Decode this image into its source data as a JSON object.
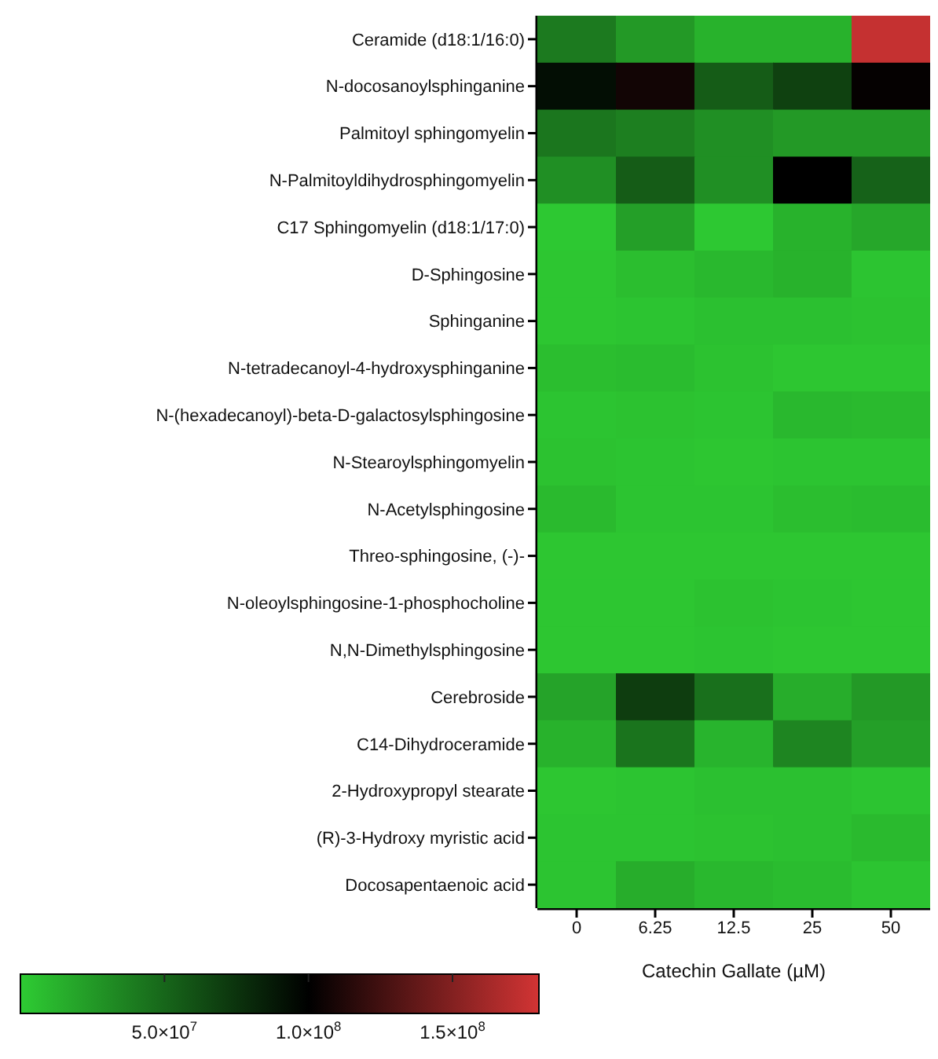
{
  "chart_data": {
    "type": "heatmap",
    "xlabel": "Catechin Gallate (µM)",
    "categories": [
      "0",
      "6.25",
      "12.5",
      "25",
      "50"
    ],
    "y_categories": [
      "Ceramide (d18:1/16:0)",
      "N-docosanoylsphinganine",
      "Palmitoyl sphingomyelin",
      "N-Palmitoyldihydrosphingomyelin",
      "C17 Sphingomyelin (d18:1/17:0)",
      "D-Sphingosine",
      "Sphinganine",
      "N-tetradecanoyl-4-hydroxysphinganine",
      "N-(hexadecanoyl)-beta-D-galactosylsphingosine",
      "N-Stearoylsphingomyelin",
      "N-Acetylsphingosine",
      "Threo-sphingosine, (-)-",
      "N-oleoylsphingosine-1-phosphocholine",
      "N,N-Dimethylsphingosine",
      "Cerebroside",
      "C14-Dihydroceramide",
      "2-Hydroxypropyl stearate",
      "(R)-3-Hydroxy myristic acid",
      "Docosapentaenoic acid"
    ],
    "cells": [
      [
        40000000,
        25000000,
        13000000,
        13000000,
        175000000
      ],
      [
        93000000,
        107000000,
        55000000,
        68000000,
        102000000
      ],
      [
        42000000,
        38000000,
        30000000,
        25000000,
        25000000
      ],
      [
        30000000,
        55000000,
        30000000,
        100000000,
        52000000
      ],
      [
        2000000,
        22000000,
        2000000,
        13000000,
        18000000
      ],
      [
        3000000,
        7000000,
        10000000,
        13000000,
        4000000
      ],
      [
        3000000,
        4000000,
        6000000,
        6000000,
        5000000
      ],
      [
        7000000,
        8000000,
        5000000,
        3000000,
        3000000
      ],
      [
        4000000,
        5000000,
        4000000,
        10000000,
        9000000
      ],
      [
        5000000,
        4000000,
        3000000,
        4000000,
        4000000
      ],
      [
        9000000,
        4000000,
        4000000,
        7000000,
        8000000
      ],
      [
        3000000,
        3000000,
        3000000,
        3000000,
        3000000
      ],
      [
        3000000,
        3000000,
        5000000,
        4000000,
        3000000
      ],
      [
        3000000,
        3000000,
        4000000,
        3000000,
        3000000
      ],
      [
        20000000,
        70000000,
        45000000,
        15000000,
        25000000
      ],
      [
        13000000,
        43000000,
        12000000,
        35000000,
        22000000
      ],
      [
        3000000,
        4000000,
        6000000,
        6000000,
        4000000
      ],
      [
        4000000,
        4000000,
        5000000,
        6000000,
        9000000
      ],
      [
        4000000,
        15000000,
        10000000,
        8000000,
        4000000
      ]
    ],
    "clim": [
      0,
      180000000
    ],
    "cticks": [
      {
        "value": 50000000,
        "label": "5.0×10$^{7}$"
      },
      {
        "value": 100000000,
        "label": "1.0×10$^{8}$"
      },
      {
        "value": 150000000,
        "label": "1.5×10$^{8}$"
      }
    ]
  }
}
